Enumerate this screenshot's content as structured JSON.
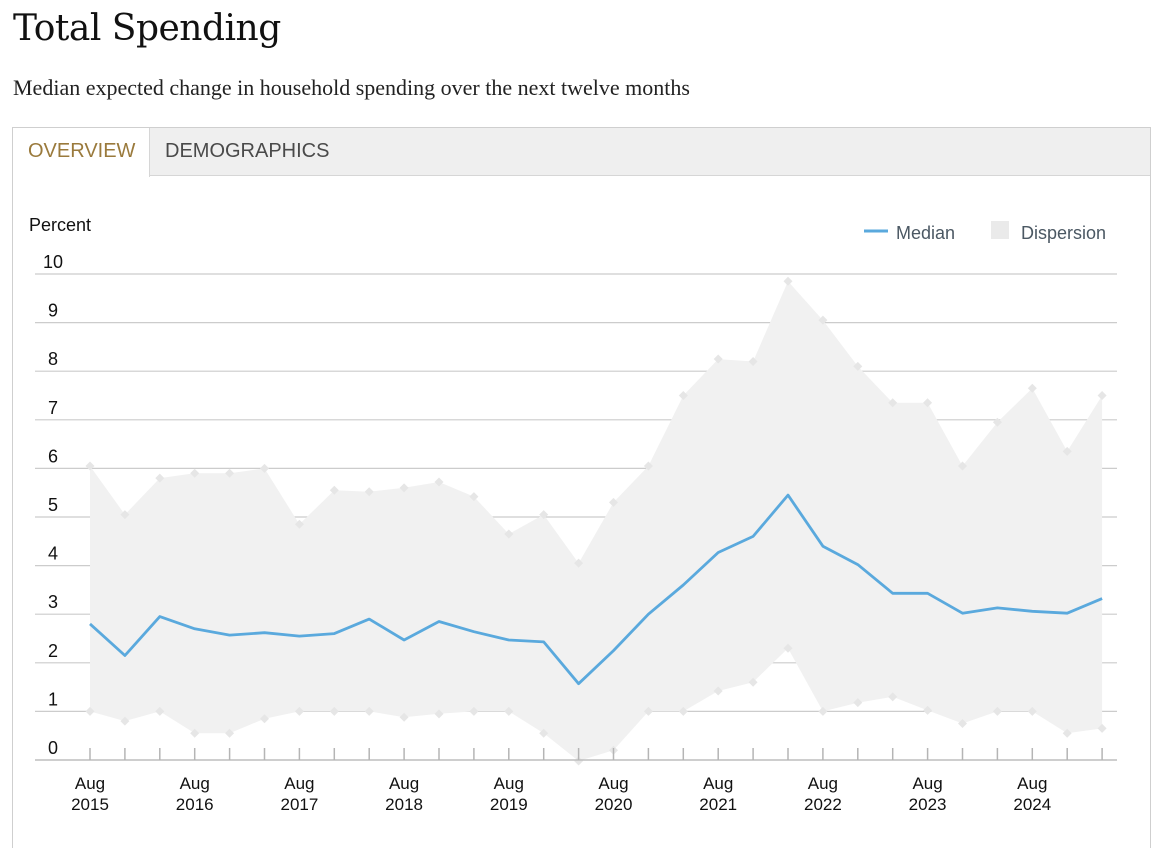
{
  "header": {
    "title": "Total Spending",
    "subtitle": "Median expected change in household spending over the next twelve months"
  },
  "tabs": [
    {
      "label": "OVERVIEW",
      "active": true
    },
    {
      "label": "DEMOGRAPHICS",
      "active": false
    }
  ],
  "colors": {
    "median_line": "#5aa9dd",
    "dispersion_fill": "#f1f1f1",
    "dispersion_marker": "#e6e6e6",
    "gridline": "#cccccc",
    "active_tab": "#9a7a3c"
  },
  "chart_data": {
    "type": "line",
    "ylabel": "Percent",
    "ylim": [
      0,
      10
    ],
    "yticks": [
      0,
      1,
      2,
      3,
      4,
      5,
      6,
      7,
      8,
      9,
      10
    ],
    "grid": true,
    "legend": {
      "position": "top-right",
      "items": [
        "Median",
        "Dispersion"
      ]
    },
    "x_labels": [
      {
        "month": "Aug",
        "year": "2015",
        "index": 0
      },
      {
        "month": "Aug",
        "year": "2016",
        "index": 3
      },
      {
        "month": "Aug",
        "year": "2017",
        "index": 6
      },
      {
        "month": "Aug",
        "year": "2018",
        "index": 9
      },
      {
        "month": "Aug",
        "year": "2019",
        "index": 12
      },
      {
        "month": "Aug",
        "year": "2020",
        "index": 15
      },
      {
        "month": "Aug",
        "year": "2021",
        "index": 18
      },
      {
        "month": "Aug",
        "year": "2022",
        "index": 21
      },
      {
        "month": "Aug",
        "year": "2023",
        "index": 24
      },
      {
        "month": "Aug",
        "year": "2024",
        "index": 27
      }
    ],
    "series": [
      {
        "name": "Median",
        "type": "line",
        "values": [
          2.8,
          2.15,
          2.95,
          2.7,
          2.57,
          2.62,
          2.55,
          2.6,
          2.9,
          2.47,
          2.85,
          2.64,
          2.47,
          2.43,
          1.57,
          2.25,
          3.0,
          3.6,
          4.27,
          4.6,
          5.45,
          4.4,
          4.02,
          3.43,
          3.43,
          3.02,
          3.13,
          3.06,
          3.02,
          3.32
        ]
      },
      {
        "name": "Dispersion",
        "type": "range",
        "upper": [
          6.05,
          5.05,
          5.8,
          5.9,
          5.9,
          6.0,
          4.85,
          5.55,
          5.52,
          5.6,
          5.72,
          5.42,
          4.65,
          5.05,
          4.05,
          5.3,
          6.05,
          7.5,
          8.25,
          8.2,
          9.85,
          9.05,
          8.1,
          7.35,
          7.35,
          6.05,
          6.95,
          7.65,
          6.35,
          7.5
        ],
        "lower": [
          1.0,
          0.8,
          1.0,
          0.55,
          0.55,
          0.85,
          1.0,
          1.0,
          1.0,
          0.88,
          0.95,
          1.0,
          1.0,
          0.55,
          -0.02,
          0.2,
          1.0,
          1.0,
          1.42,
          1.6,
          2.3,
          1.0,
          1.18,
          1.3,
          1.02,
          0.75,
          1.0,
          1.0,
          0.55,
          0.65
        ]
      }
    ]
  }
}
